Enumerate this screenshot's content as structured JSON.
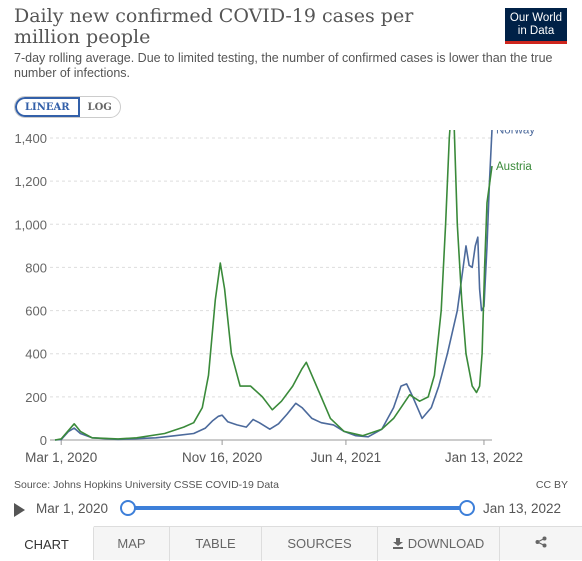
{
  "header": {
    "title": "Daily new confirmed COVID-19 cases per million people",
    "subtitle": "7-day rolling average. Due to limited testing, the number of confirmed cases is lower than the true number of infections.",
    "logo": "Our World in Data"
  },
  "scale_toggle": {
    "linear": "LINEAR",
    "log": "LOG"
  },
  "chart_data": {
    "type": "line",
    "yticks": [
      "0",
      "200",
      "400",
      "600",
      "800",
      "1,000",
      "1,200",
      "1,400"
    ],
    "ylim": [
      0,
      1400
    ],
    "xticks": [
      "Mar 1, 2020",
      "Nov 16, 2020",
      "Jun 4, 2021",
      "Jan 13, 2022"
    ],
    "grid": true,
    "series": [
      {
        "name": "Norway",
        "color": "#4c6a9c",
        "points": [
          [
            "2020-02-20",
            0
          ],
          [
            "2020-03-01",
            2
          ],
          [
            "2020-03-13",
            40
          ],
          [
            "2020-03-22",
            55
          ],
          [
            "2020-04-01",
            30
          ],
          [
            "2020-04-20",
            10
          ],
          [
            "2020-06-01",
            3
          ],
          [
            "2020-08-01",
            10
          ],
          [
            "2020-09-01",
            20
          ],
          [
            "2020-10-01",
            30
          ],
          [
            "2020-10-20",
            55
          ],
          [
            "2020-11-01",
            90
          ],
          [
            "2020-11-10",
            110
          ],
          [
            "2020-11-16",
            115
          ],
          [
            "2020-11-25",
            85
          ],
          [
            "2020-12-10",
            70
          ],
          [
            "2020-12-25",
            60
          ],
          [
            "2021-01-05",
            95
          ],
          [
            "2021-01-15",
            80
          ],
          [
            "2021-02-01",
            50
          ],
          [
            "2021-02-15",
            75
          ],
          [
            "2021-03-01",
            120
          ],
          [
            "2021-03-15",
            170
          ],
          [
            "2021-03-25",
            150
          ],
          [
            "2021-04-10",
            100
          ],
          [
            "2021-04-25",
            80
          ],
          [
            "2021-05-15",
            70
          ],
          [
            "2021-06-01",
            40
          ],
          [
            "2021-06-20",
            20
          ],
          [
            "2021-07-10",
            15
          ],
          [
            "2021-08-01",
            50
          ],
          [
            "2021-08-20",
            150
          ],
          [
            "2021-09-01",
            250
          ],
          [
            "2021-09-10",
            260
          ],
          [
            "2021-09-20",
            200
          ],
          [
            "2021-10-05",
            100
          ],
          [
            "2021-10-20",
            150
          ],
          [
            "2021-11-01",
            250
          ],
          [
            "2021-11-15",
            400
          ],
          [
            "2021-12-01",
            600
          ],
          [
            "2021-12-08",
            750
          ],
          [
            "2021-12-15",
            900
          ],
          [
            "2021-12-20",
            810
          ],
          [
            "2021-12-25",
            800
          ],
          [
            "2021-12-30",
            900
          ],
          [
            "2022-01-03",
            940
          ],
          [
            "2022-01-06",
            700
          ],
          [
            "2022-01-09",
            600
          ],
          [
            "2022-01-13",
            620
          ],
          [
            "2022-01-18",
            900
          ],
          [
            "2022-01-22",
            1200
          ],
          [
            "2022-01-26",
            1440
          ]
        ]
      },
      {
        "name": "Austria",
        "color": "#3a8a3a",
        "points": [
          [
            "2020-02-20",
            0
          ],
          [
            "2020-03-01",
            5
          ],
          [
            "2020-03-13",
            45
          ],
          [
            "2020-03-22",
            75
          ],
          [
            "2020-04-01",
            40
          ],
          [
            "2020-04-20",
            10
          ],
          [
            "2020-06-01",
            5
          ],
          [
            "2020-07-01",
            10
          ],
          [
            "2020-08-15",
            30
          ],
          [
            "2020-09-15",
            60
          ],
          [
            "2020-10-01",
            80
          ],
          [
            "2020-10-15",
            150
          ],
          [
            "2020-10-25",
            300
          ],
          [
            "2020-11-05",
            650
          ],
          [
            "2020-11-13",
            820
          ],
          [
            "2020-11-20",
            700
          ],
          [
            "2020-12-01",
            400
          ],
          [
            "2020-12-15",
            250
          ],
          [
            "2021-01-01",
            250
          ],
          [
            "2021-01-20",
            200
          ],
          [
            "2021-02-05",
            140
          ],
          [
            "2021-02-20",
            180
          ],
          [
            "2021-03-10",
            250
          ],
          [
            "2021-03-25",
            330
          ],
          [
            "2021-04-01",
            360
          ],
          [
            "2021-04-10",
            300
          ],
          [
            "2021-04-25",
            200
          ],
          [
            "2021-05-10",
            100
          ],
          [
            "2021-06-01",
            40
          ],
          [
            "2021-07-01",
            20
          ],
          [
            "2021-08-01",
            50
          ],
          [
            "2021-08-20",
            100
          ],
          [
            "2021-09-01",
            150
          ],
          [
            "2021-09-15",
            210
          ],
          [
            "2021-10-01",
            180
          ],
          [
            "2021-10-15",
            200
          ],
          [
            "2021-10-25",
            300
          ],
          [
            "2021-11-05",
            600
          ],
          [
            "2021-11-12",
            1000
          ],
          [
            "2021-11-18",
            1400
          ],
          [
            "2021-11-22",
            1560
          ],
          [
            "2021-11-26",
            1450
          ],
          [
            "2021-12-01",
            1000
          ],
          [
            "2021-12-08",
            650
          ],
          [
            "2021-12-15",
            400
          ],
          [
            "2021-12-25",
            250
          ],
          [
            "2022-01-01",
            220
          ],
          [
            "2022-01-06",
            250
          ],
          [
            "2022-01-10",
            400
          ],
          [
            "2022-01-14",
            800
          ],
          [
            "2022-01-18",
            1100
          ],
          [
            "2022-01-26",
            1270
          ]
        ]
      }
    ]
  },
  "footer": {
    "source": "Source: Johns Hopkins University CSSE COVID-19 Data",
    "license": "CC BY"
  },
  "timeline": {
    "start": "Mar 1, 2020",
    "end": "Jan 13, 2022"
  },
  "tabs": [
    "CHART",
    "MAP",
    "TABLE",
    "SOURCES",
    "DOWNLOAD"
  ]
}
